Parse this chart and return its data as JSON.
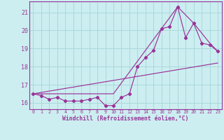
{
  "xlabel": "Windchill (Refroidissement éolien,°C)",
  "xlim": [
    -0.5,
    23.5
  ],
  "ylim": [
    15.65,
    21.6
  ],
  "yticks": [
    16,
    17,
    18,
    19,
    20,
    21
  ],
  "xticks": [
    0,
    1,
    2,
    3,
    4,
    5,
    6,
    7,
    8,
    9,
    10,
    11,
    12,
    13,
    14,
    15,
    16,
    17,
    18,
    19,
    20,
    21,
    22,
    23
  ],
  "bg_color": "#cceef0",
  "line_color": "#993399",
  "grid_color": "#aad8dc",
  "line1_x": [
    0,
    1,
    2,
    3,
    4,
    5,
    6,
    7,
    8,
    9,
    10,
    11,
    12,
    13,
    14,
    15,
    16,
    17,
    18,
    19,
    20,
    21,
    22,
    23
  ],
  "line1_y": [
    16.5,
    16.4,
    16.2,
    16.3,
    16.1,
    16.1,
    16.1,
    16.2,
    16.3,
    15.85,
    15.85,
    16.3,
    16.5,
    18.0,
    18.5,
    18.9,
    20.1,
    20.2,
    21.3,
    19.6,
    20.4,
    19.3,
    19.2,
    18.85
  ],
  "line2_x": [
    0,
    23
  ],
  "line2_y": [
    16.5,
    18.2
  ],
  "line3_x": [
    0,
    10,
    18,
    20,
    22,
    23
  ],
  "line3_y": [
    16.5,
    16.5,
    21.3,
    20.4,
    19.3,
    18.85
  ]
}
